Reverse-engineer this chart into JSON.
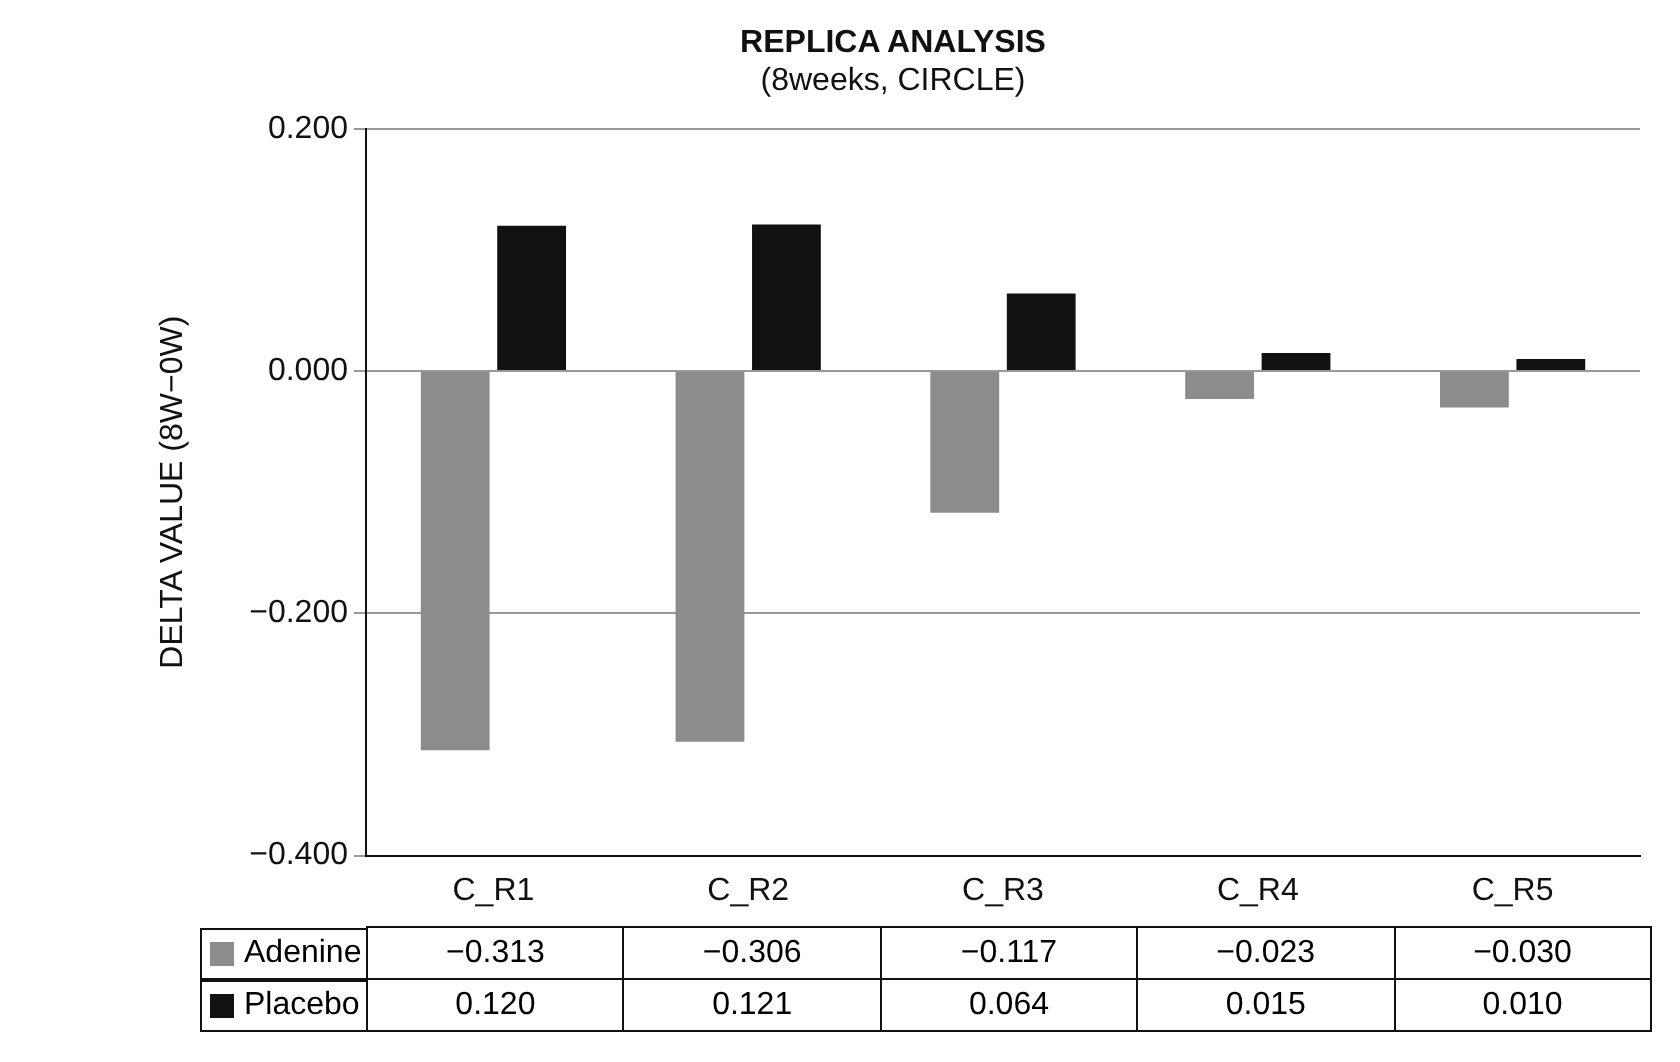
{
  "chart_data": {
    "type": "bar",
    "title": "REPLICA ANALYSIS",
    "subtitle": "(8weeks, CIRCLE)",
    "ylabel": "DELTA VALUE (8W−0W)",
    "categories": [
      "C_R1",
      "C_R2",
      "C_R3",
      "C_R4",
      "C_R5"
    ],
    "series": [
      {
        "name": "Adenine",
        "color": "#8c8c8c",
        "values": [
          -0.313,
          -0.306,
          -0.117,
          -0.023,
          -0.03
        ],
        "value_labels": [
          "−0.313",
          "−0.306",
          "−0.117",
          "−0.023",
          "−0.030"
        ]
      },
      {
        "name": "Placebo",
        "color": "#111111",
        "values": [
          0.12,
          0.121,
          0.064,
          0.015,
          0.01
        ],
        "value_labels": [
          "0.120",
          "0.121",
          "0.064",
          "0.015",
          "0.010"
        ]
      }
    ],
    "ylim": [
      -0.4,
      0.2
    ],
    "yticks": [
      {
        "value": -0.4,
        "label": "−0.400"
      },
      {
        "value": -0.2,
        "label": "−0.200"
      },
      {
        "value": 0,
        "label": "0.000"
      },
      {
        "value": 0.2,
        "label": "0.200"
      }
    ],
    "grid": "y",
    "legend": "bottom"
  }
}
